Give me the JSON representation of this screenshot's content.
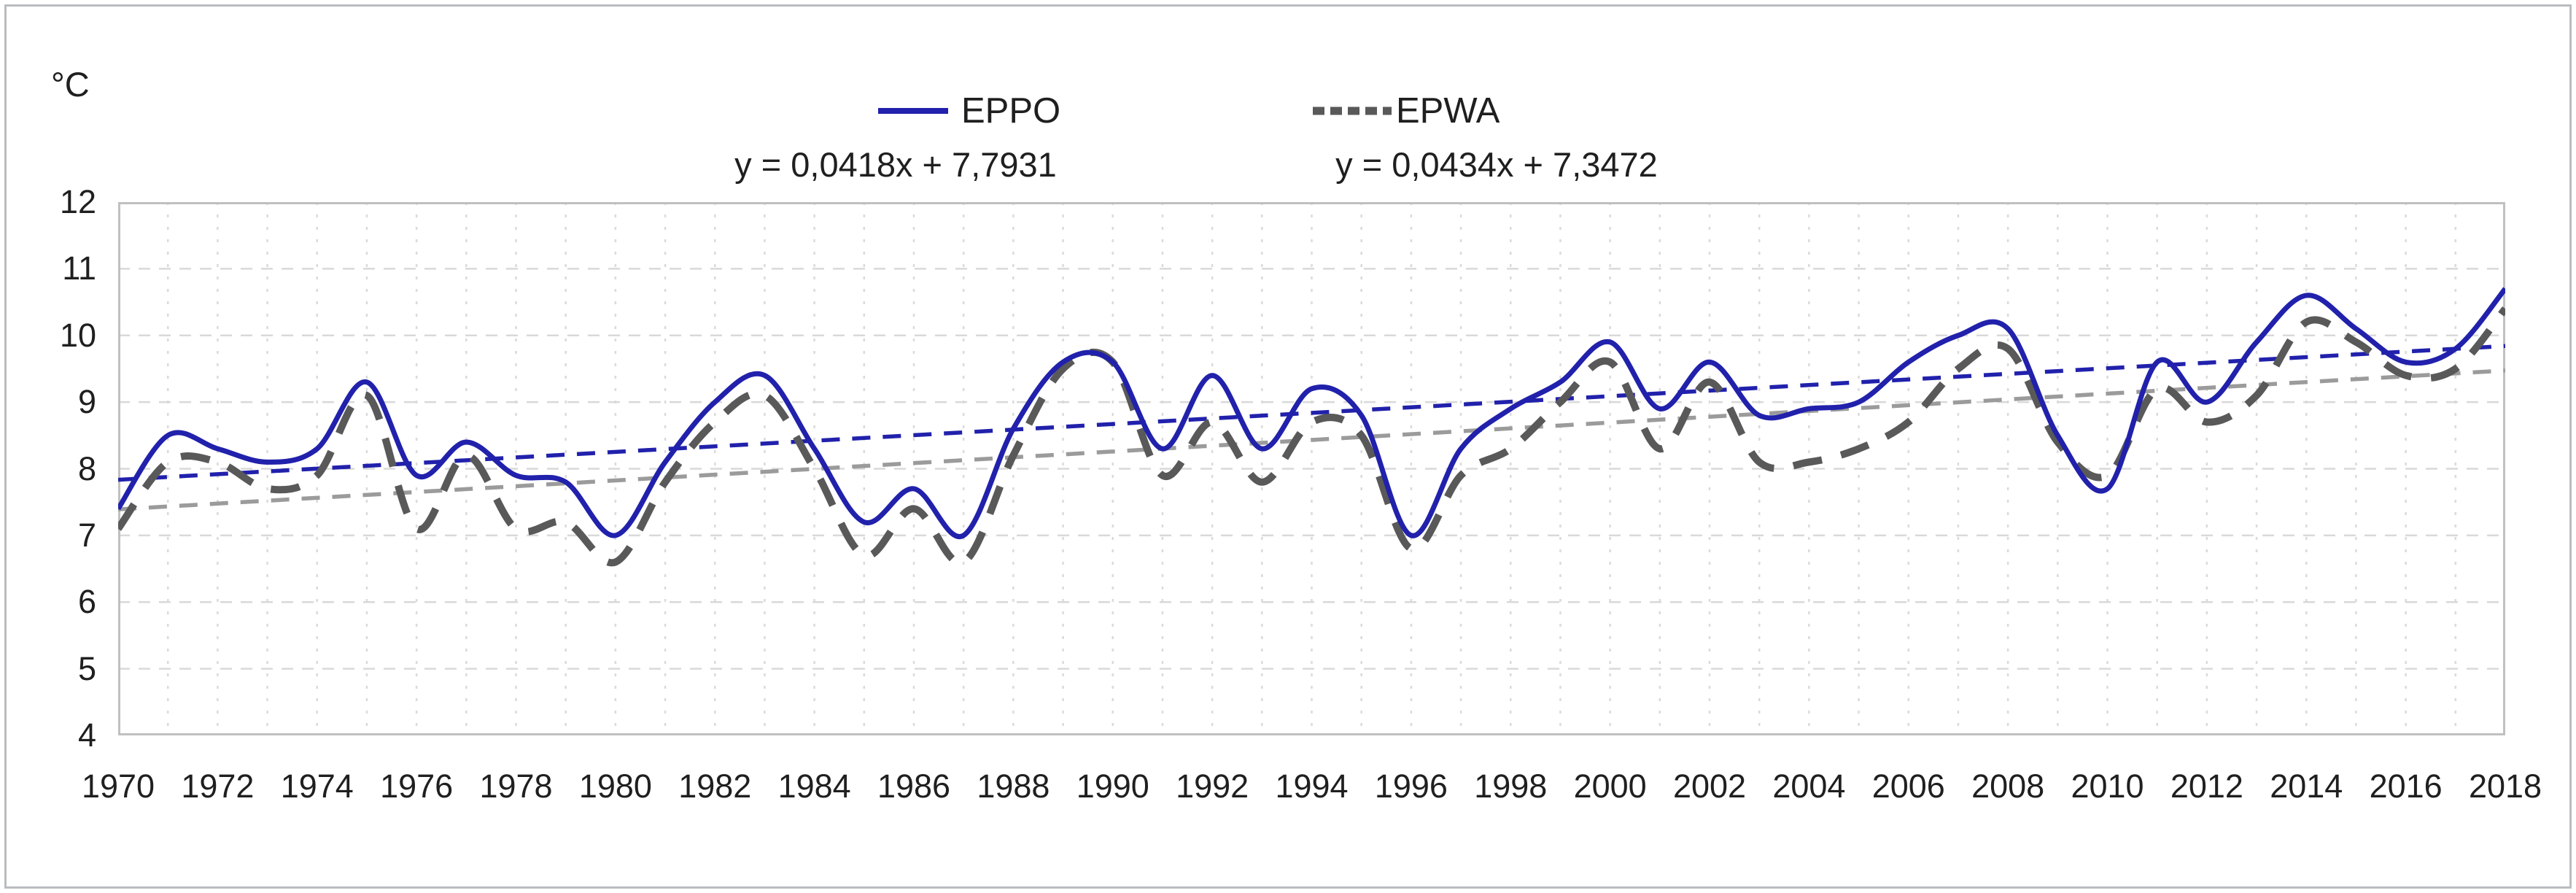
{
  "figure": {
    "type_note": "smoothed line chart with linear trendlines",
    "background": "#ffffff",
    "border_color": "#b9bcc0"
  },
  "chart_data": {
    "type": "line",
    "title": "",
    "xlabel": "",
    "ylabel": "°C",
    "ylim": [
      4,
      12
    ],
    "ytick_step": 1,
    "grid": "both",
    "legend_position": "top-center",
    "x": [
      1970,
      1971,
      1972,
      1973,
      1974,
      1975,
      1976,
      1977,
      1978,
      1979,
      1980,
      1981,
      1982,
      1983,
      1984,
      1985,
      1986,
      1987,
      1988,
      1989,
      1990,
      1991,
      1992,
      1993,
      1994,
      1995,
      1996,
      1997,
      1998,
      1999,
      2000,
      2001,
      2002,
      2003,
      2004,
      2005,
      2006,
      2007,
      2008,
      2009,
      2010,
      2011,
      2012,
      2013,
      2014,
      2015,
      2016,
      2017,
      2018
    ],
    "x_tick_labels": [
      "1970",
      "1972",
      "1974",
      "1976",
      "1978",
      "1980",
      "1982",
      "1984",
      "1986",
      "1988",
      "1990",
      "1992",
      "1994",
      "1996",
      "1998",
      "2000",
      "2002",
      "2004",
      "2006",
      "2008",
      "2010",
      "2012",
      "2014",
      "2016",
      "2018"
    ],
    "y_tick_labels": [
      "4",
      "5",
      "6",
      "7",
      "8",
      "9",
      "10",
      "11",
      "12"
    ],
    "series": [
      {
        "name": "EPPO",
        "color": "#2121ac",
        "line_style": "solid",
        "line_width": 7,
        "values": [
          7.4,
          8.5,
          8.3,
          8.1,
          8.3,
          9.3,
          7.9,
          8.4,
          7.9,
          7.8,
          7.0,
          8.1,
          9.0,
          9.4,
          8.3,
          7.2,
          7.7,
          7.0,
          8.6,
          9.6,
          9.6,
          8.3,
          9.4,
          8.3,
          9.2,
          8.8,
          7.0,
          8.3,
          8.9,
          9.3,
          9.9,
          8.9,
          9.6,
          8.8,
          8.9,
          9.0,
          9.6,
          10.0,
          10.1,
          8.5,
          7.7,
          9.6,
          9.0,
          9.9,
          10.6,
          10.1,
          9.6,
          9.8,
          10.7
        ],
        "trend": {
          "label": "y = 0,0418x + 7,7931",
          "slope": 0.0418,
          "intercept": 7.7931,
          "color": "#2121ac",
          "line_style": "dashed"
        }
      },
      {
        "name": "EPWA",
        "color": "#595959",
        "line_style": "dashed",
        "line_width": 10,
        "values": [
          7.1,
          8.1,
          8.1,
          7.7,
          7.9,
          9.1,
          7.1,
          8.2,
          7.1,
          7.2,
          6.6,
          7.8,
          8.7,
          9.1,
          8.0,
          6.7,
          7.4,
          6.6,
          8.2,
          9.5,
          9.6,
          7.9,
          8.7,
          7.8,
          8.7,
          8.5,
          6.8,
          7.9,
          8.3,
          9.0,
          9.6,
          8.3,
          9.3,
          8.1,
          8.1,
          8.3,
          8.7,
          9.5,
          9.8,
          8.4,
          7.9,
          9.2,
          8.7,
          9.1,
          10.2,
          9.9,
          9.4,
          9.5,
          10.4
        ],
        "trend": {
          "label": "y = 0,0434x + 7,3472",
          "slope": 0.0434,
          "intercept": 7.3472,
          "color": "#9b9b9b",
          "line_style": "dashed"
        }
      }
    ],
    "style": {
      "grid_color": "#d9d9d9",
      "plot_border_color": "#c0c0c0",
      "text_color": "#1f1f1f"
    }
  }
}
